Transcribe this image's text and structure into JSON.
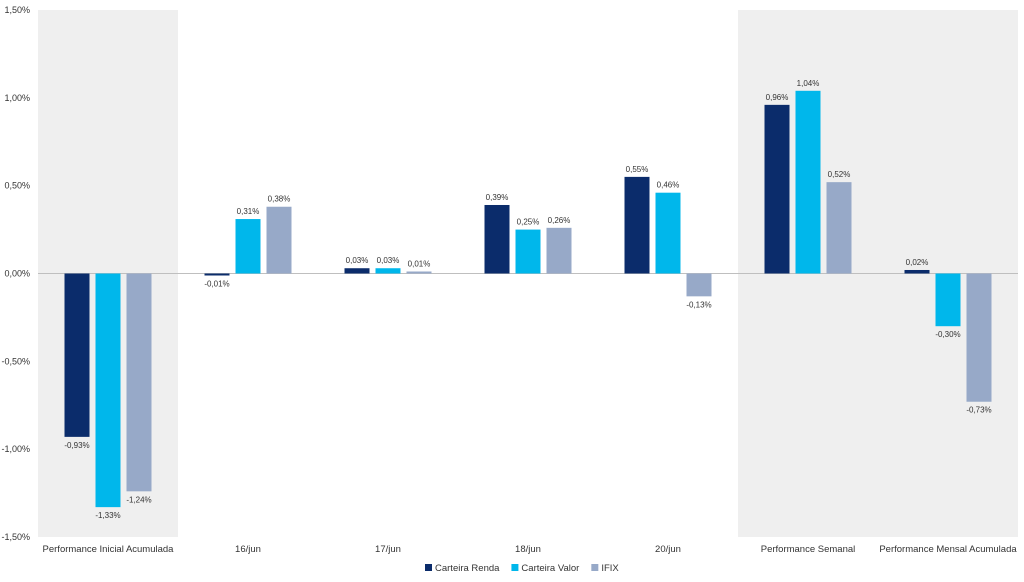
{
  "chart_data": {
    "type": "bar",
    "categories": [
      "Performance Inicial Acumulada",
      "16/jun",
      "17/jun",
      "18/jun",
      "20/jun",
      "Performance Semanal",
      "Performance Mensal Acumulada"
    ],
    "series": [
      {
        "name": "Carteira Renda",
        "color": "#0b2c6b",
        "values": [
          -0.93,
          -0.01,
          0.03,
          0.39,
          0.55,
          0.96,
          0.02
        ],
        "labels": [
          "-0,93%",
          "-0,01%",
          "0,03%",
          "0,39%",
          "0,55%",
          "0,96%",
          "0,02%"
        ]
      },
      {
        "name": "Carteira Valor",
        "color": "#00b7eb",
        "values": [
          -1.33,
          0.31,
          0.03,
          0.25,
          0.46,
          1.04,
          -0.3
        ],
        "labels": [
          "-1,33%",
          "0,31%",
          "0,03%",
          "0,25%",
          "0,46%",
          "1,04%",
          "-0,30%"
        ]
      },
      {
        "name": "IFIX",
        "color": "#97a9c8",
        "values": [
          -1.24,
          0.38,
          0.01,
          0.26,
          -0.13,
          0.52,
          -0.73
        ],
        "labels": [
          "-1,24%",
          "0,38%",
          "0,01%",
          "0,26%",
          "-0,13%",
          "0,52%",
          "-0,73%"
        ]
      }
    ],
    "yticks": [
      {
        "value": 1.5,
        "label": "1,50%"
      },
      {
        "value": 1.0,
        "label": "1,00%"
      },
      {
        "value": 0.5,
        "label": "0,50%"
      },
      {
        "value": 0.0,
        "label": "0,00%"
      },
      {
        "value": -0.5,
        "label": "-0,50%"
      },
      {
        "value": -1.0,
        "label": "-1,00%"
      },
      {
        "value": -1.5,
        "label": "-1,50%"
      }
    ],
    "ylim": [
      -1.5,
      1.5
    ],
    "shaded_categories": [
      0,
      5,
      6
    ],
    "shade_color": "#efefef",
    "grid": false,
    "legend_position": "bottom"
  }
}
